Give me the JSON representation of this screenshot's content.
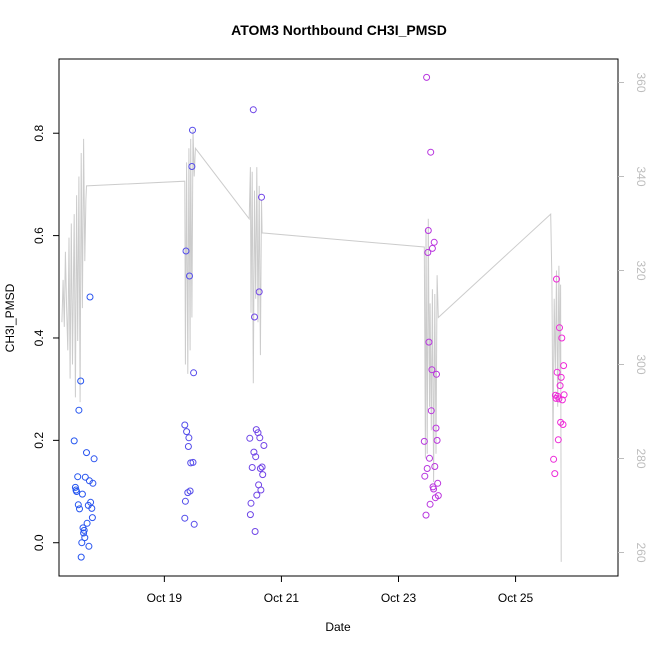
{
  "chart_data": {
    "type": "scatter",
    "title": "ATOM3 Northbound CH3I_PMSD",
    "xlabel": "Date",
    "ylabel": "CH3I_PMSD",
    "y2label": "",
    "xlim": [
      17.2,
      26.75
    ],
    "ylim": [
      -0.065,
      0.945
    ],
    "y2lim": [
      255,
      365
    ],
    "x_ticks": [
      {
        "value": 19,
        "label": "Oct 19"
      },
      {
        "value": 21,
        "label": "Oct 21"
      },
      {
        "value": 23,
        "label": "Oct 23"
      },
      {
        "value": 25,
        "label": "Oct 25"
      }
    ],
    "y_ticks": [
      0.0,
      0.2,
      0.4,
      0.6,
      0.8
    ],
    "y_tick_labels": [
      "0.0",
      "0.2",
      "0.4",
      "0.6",
      "0.8"
    ],
    "y2_ticks": [
      260,
      280,
      300,
      320,
      340,
      360
    ],
    "y2_tick_labels": [
      "260",
      "280",
      "300",
      "320",
      "340",
      "360"
    ],
    "colors": {
      "line": "#cccccc",
      "point_start": "#2456f0",
      "point_end": "#f02ad8",
      "right_axis": "#bdbdbd",
      "frame": "#000000"
    },
    "grid": false,
    "series": [
      {
        "points": [
          [
            17.46,
            0.199
          ],
          [
            17.48,
            0.108
          ],
          [
            17.49,
            0.103
          ],
          [
            17.5,
            0.1
          ],
          [
            17.52,
            0.129
          ],
          [
            17.53,
            0.074
          ],
          [
            17.54,
            0.259
          ],
          [
            17.55,
            0.066
          ],
          [
            17.57,
            0.316
          ],
          [
            17.58,
            -0.028
          ],
          [
            17.59,
            0.0
          ],
          [
            17.6,
            0.095
          ],
          [
            17.61,
            0.029
          ],
          [
            17.62,
            0.019
          ],
          [
            17.63,
            0.024
          ],
          [
            17.64,
            0.01
          ],
          [
            17.65,
            0.128
          ],
          [
            17.67,
            0.176
          ],
          [
            17.68,
            0.038
          ],
          [
            17.7,
            0.073
          ],
          [
            17.71,
            -0.007
          ],
          [
            17.72,
            0.121
          ],
          [
            17.73,
            0.48
          ],
          [
            17.74,
            0.079
          ],
          [
            17.76,
            0.067
          ],
          [
            17.77,
            0.049
          ],
          [
            17.78,
            0.116
          ],
          [
            17.8,
            0.164
          ],
          [
            19.35,
            0.23
          ],
          [
            19.35,
            0.048
          ],
          [
            19.36,
            0.081
          ],
          [
            19.37,
            0.57
          ],
          [
            19.38,
            0.217
          ],
          [
            19.4,
            0.098
          ],
          [
            19.41,
            0.188
          ],
          [
            19.42,
            0.205
          ],
          [
            19.43,
            0.521
          ],
          [
            19.44,
            0.101
          ],
          [
            19.45,
            0.156
          ],
          [
            19.47,
            0.735
          ],
          [
            19.48,
            0.806
          ],
          [
            19.49,
            0.157
          ],
          [
            19.5,
            0.332
          ],
          [
            19.51,
            0.036
          ],
          [
            20.46,
            0.204
          ],
          [
            20.47,
            0.055
          ],
          [
            20.48,
            0.077
          ],
          [
            20.5,
            0.147
          ],
          [
            20.52,
            0.846
          ],
          [
            20.53,
            0.177
          ],
          [
            20.54,
            0.441
          ],
          [
            20.55,
            0.022
          ],
          [
            20.56,
            0.168
          ],
          [
            20.57,
            0.221
          ],
          [
            20.58,
            0.093
          ],
          [
            20.6,
            0.215
          ],
          [
            20.61,
            0.113
          ],
          [
            20.62,
            0.49
          ],
          [
            20.63,
            0.205
          ],
          [
            20.64,
            0.145
          ],
          [
            20.65,
            0.103
          ],
          [
            20.66,
            0.675
          ],
          [
            20.67,
            0.148
          ],
          [
            20.68,
            0.133
          ],
          [
            20.7,
            0.19
          ],
          [
            23.44,
            0.198
          ],
          [
            23.45,
            0.13
          ],
          [
            23.47,
            0.054
          ],
          [
            23.48,
            0.909
          ],
          [
            23.49,
            0.145
          ],
          [
            23.5,
            0.567
          ],
          [
            23.51,
            0.61
          ],
          [
            23.52,
            0.392
          ],
          [
            23.53,
            0.165
          ],
          [
            23.54,
            0.075
          ],
          [
            23.55,
            0.763
          ],
          [
            23.56,
            0.258
          ],
          [
            23.57,
            0.338
          ],
          [
            23.58,
            0.575
          ],
          [
            23.59,
            0.109
          ],
          [
            23.6,
            0.105
          ],
          [
            23.61,
            0.587
          ],
          [
            23.62,
            0.149
          ],
          [
            23.63,
            0.088
          ],
          [
            23.64,
            0.224
          ],
          [
            23.65,
            0.329
          ],
          [
            23.66,
            0.2
          ],
          [
            23.67,
            0.116
          ],
          [
            23.68,
            0.092
          ],
          [
            25.65,
            0.163
          ],
          [
            25.67,
            0.135
          ],
          [
            25.68,
            0.288
          ],
          [
            25.69,
            0.282
          ],
          [
            25.7,
            0.515
          ],
          [
            25.71,
            0.333
          ],
          [
            25.72,
            0.286
          ],
          [
            25.73,
            0.201
          ],
          [
            25.74,
            0.281
          ],
          [
            25.75,
            0.42
          ],
          [
            25.76,
            0.307
          ],
          [
            25.77,
            0.235
          ],
          [
            25.78,
            0.323
          ],
          [
            25.79,
            0.4
          ],
          [
            25.8,
            0.279
          ],
          [
            25.81,
            0.231
          ],
          [
            25.82,
            0.346
          ],
          [
            25.83,
            0.289
          ]
        ]
      },
      {
        "axis": "right",
        "points": [
          [
            17.25,
            309
          ],
          [
            17.27,
            318
          ],
          [
            17.29,
            308
          ],
          [
            17.31,
            324
          ],
          [
            17.33,
            312
          ],
          [
            17.35,
            303
          ],
          [
            17.37,
            327
          ],
          [
            17.39,
            297
          ],
          [
            17.41,
            330
          ],
          [
            17.43,
            300
          ],
          [
            17.46,
            332
          ],
          [
            17.48,
            293
          ],
          [
            17.5,
            336
          ],
          [
            17.52,
            305
          ],
          [
            17.54,
            340
          ],
          [
            17.56,
            292
          ],
          [
            17.58,
            345
          ],
          [
            17.6,
            312
          ],
          [
            17.62,
            348
          ],
          [
            17.64,
            322
          ],
          [
            17.66,
            335
          ],
          [
            17.67,
            338
          ],
          [
            19.35,
            339
          ],
          [
            19.36,
            300
          ],
          [
            19.38,
            343
          ],
          [
            19.4,
            298
          ],
          [
            19.42,
            346
          ],
          [
            19.44,
            303
          ],
          [
            19.45,
            348
          ],
          [
            19.47,
            310
          ],
          [
            19.49,
            350
          ],
          [
            19.51,
            340
          ],
          [
            19.53,
            346
          ],
          [
            20.45,
            331
          ],
          [
            20.47,
            342
          ],
          [
            20.48,
            311
          ],
          [
            20.5,
            341
          ],
          [
            20.52,
            296
          ],
          [
            20.54,
            337
          ],
          [
            20.56,
            314
          ],
          [
            20.58,
            342
          ],
          [
            20.6,
            309
          ],
          [
            20.62,
            338
          ],
          [
            20.64,
            302
          ],
          [
            20.66,
            335
          ],
          [
            20.67,
            328
          ],
          [
            23.44,
            325
          ],
          [
            23.46,
            280
          ],
          [
            23.47,
            329
          ],
          [
            23.49,
            281
          ],
          [
            23.51,
            331
          ],
          [
            23.53,
            291
          ],
          [
            23.54,
            313
          ],
          [
            23.56,
            286
          ],
          [
            23.58,
            316
          ],
          [
            23.6,
            275
          ],
          [
            23.62,
            315
          ],
          [
            23.64,
            281
          ],
          [
            23.66,
            319
          ],
          [
            23.68,
            310
          ],
          [
            25.6,
            332
          ],
          [
            25.62,
            318
          ],
          [
            25.64,
            282
          ],
          [
            25.66,
            314
          ],
          [
            25.68,
            299
          ],
          [
            25.7,
            320
          ],
          [
            25.72,
            291
          ],
          [
            25.74,
            321
          ],
          [
            25.76,
            296
          ],
          [
            25.77,
            317
          ],
          [
            25.78,
            258
          ]
        ]
      }
    ]
  }
}
